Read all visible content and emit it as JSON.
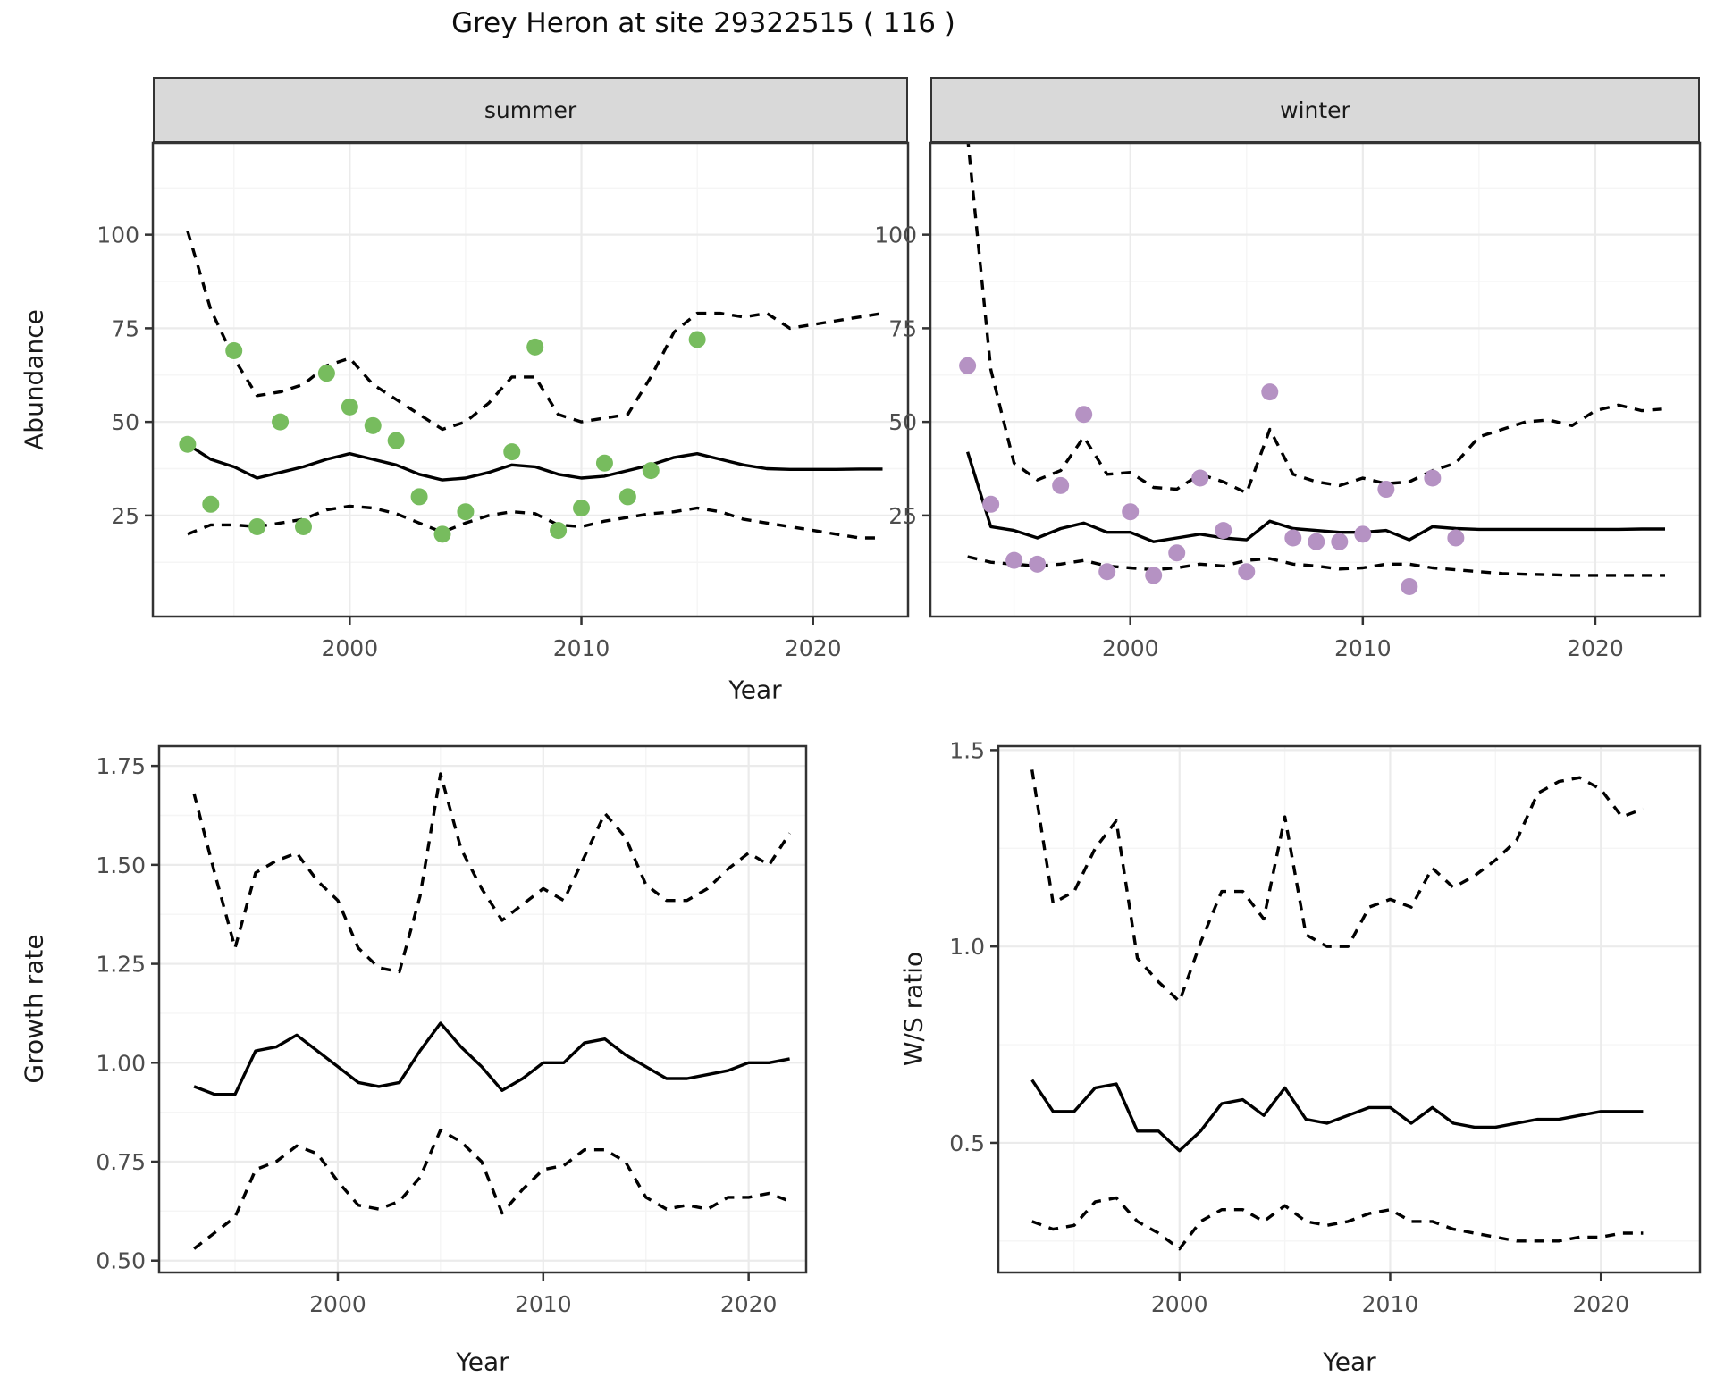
{
  "title": "Grey Heron at site 29322515 ( 116 )",
  "colors": {
    "summer_points": "#77bc5e",
    "winter_points": "#b592c3",
    "line": "#000000",
    "strip_bg": "#d9d9d9",
    "panel_border": "#333333",
    "grid_major": "#ebebeb",
    "grid_minor": "#f5f5f5",
    "axis_text": "#4d4d4d",
    "title_text": "#0d0d0d"
  },
  "chart_data": [
    {
      "id": "abundance-summer",
      "type": "line",
      "facet_label": "summer",
      "xlabel": "Year",
      "ylabel": "Abundance",
      "xlim": [
        1991.5,
        2024.1
      ],
      "ylim": [
        -2,
        124.5
      ],
      "xticks": [
        2000,
        2010,
        2020
      ],
      "xtick_labels": [
        "2000",
        "2010",
        "2020"
      ],
      "xticks_minor": [
        1995,
        2005,
        2015
      ],
      "yticks": [
        25,
        50,
        75,
        100
      ],
      "ytick_labels": [
        "25",
        "50",
        "75",
        "100"
      ],
      "yticks_minor": [
        12.5,
        37.5,
        62.5,
        87.5,
        112.5
      ],
      "grid": true,
      "legend": "none",
      "series": [
        {
          "name": "fitted-trend",
          "style": "solid",
          "x_start": 1993,
          "values": [
            44,
            40,
            38,
            35,
            36.5,
            38,
            40,
            41.5,
            40,
            38.5,
            36,
            34.5,
            35,
            36.5,
            38.5,
            38,
            36,
            35,
            35.5,
            37,
            38.5,
            40.5,
            41.5,
            40,
            38.5,
            37.5,
            37.3,
            37.3,
            37.3,
            37.4,
            37.4
          ]
        },
        {
          "name": "upper-ci",
          "style": "dashed",
          "x_start": 1993,
          "values": [
            101,
            80,
            67,
            57,
            58,
            60,
            65,
            67,
            60,
            56,
            52,
            48,
            50,
            55,
            62,
            62,
            52,
            50,
            51,
            52,
            62,
            74,
            79,
            79,
            78,
            79,
            75,
            76,
            77,
            78,
            79
          ]
        },
        {
          "name": "lower-ci",
          "style": "dashed",
          "x_start": 1993,
          "values": [
            20,
            22.5,
            22.5,
            22,
            23,
            24,
            26.5,
            27.5,
            27,
            25.5,
            23,
            20.5,
            23,
            25,
            26,
            25.5,
            22.5,
            22,
            23.5,
            24.5,
            25.5,
            26,
            27,
            26,
            24,
            23,
            22,
            21,
            20,
            19,
            19
          ]
        }
      ],
      "points": {
        "name": "observed-counts-summer",
        "color": "#77bc5e",
        "x": [
          1993,
          1994,
          1995,
          1996,
          1997,
          1998,
          1999,
          2000,
          2001,
          2002,
          2003,
          2004,
          2005,
          2007,
          2008,
          2009,
          2010,
          2011,
          2012,
          2013,
          2015
        ],
        "y": [
          44,
          28,
          69,
          22,
          50,
          22,
          63,
          54,
          49,
          45,
          30,
          20,
          26,
          42,
          70,
          21,
          27,
          39,
          30,
          37,
          72
        ]
      }
    },
    {
      "id": "abundance-winter",
      "type": "line",
      "facet_label": "winter",
      "xlabel": "Year",
      "ylabel": "Abundance",
      "xlim": [
        1991.4,
        2024.5
      ],
      "ylim": [
        -2,
        124.5
      ],
      "xticks": [
        2000,
        2010,
        2020
      ],
      "xtick_labels": [
        "2000",
        "2010",
        "2020"
      ],
      "xticks_minor": [
        1995,
        2005,
        2015
      ],
      "yticks": [
        25,
        50,
        75,
        100
      ],
      "ytick_labels": [
        "25",
        "50",
        "75",
        "100"
      ],
      "yticks_minor": [
        12.5,
        37.5,
        62.5,
        87.5,
        112.5
      ],
      "grid": true,
      "legend": "none",
      "series": [
        {
          "name": "fitted-trend",
          "style": "solid",
          "x_start": 1993,
          "values": [
            42,
            22,
            21,
            19,
            21.5,
            23,
            20.5,
            20.5,
            18,
            19,
            20,
            19,
            18.5,
            23.5,
            21.5,
            21,
            20.5,
            20.5,
            21,
            18.5,
            22,
            21.5,
            21.3,
            21.3,
            21.3,
            21.3,
            21.3,
            21.3,
            21.3,
            21.4,
            21.4
          ]
        },
        {
          "name": "upper-ci",
          "style": "dashed",
          "x_start": 1993,
          "values": [
            126,
            64,
            39,
            34.5,
            37,
            46,
            36,
            36.5,
            32.5,
            32,
            36,
            34,
            31,
            48,
            36,
            34,
            33,
            35,
            33.5,
            34,
            37,
            39,
            46,
            48,
            50,
            50.5,
            49,
            53,
            54.5,
            53,
            53.5
          ]
        },
        {
          "name": "lower-ci",
          "style": "dashed",
          "x_start": 1993,
          "values": [
            14,
            12.5,
            12,
            11.5,
            12,
            13,
            11.5,
            11,
            10.5,
            11,
            12,
            11.5,
            13,
            13.5,
            12,
            11.5,
            10.7,
            11,
            12,
            12,
            11,
            10.5,
            10,
            9.5,
            9.3,
            9.2,
            9,
            9,
            9,
            9,
            9
          ]
        }
      ],
      "points": {
        "name": "observed-counts-winter",
        "color": "#b592c3",
        "x": [
          1993,
          1994,
          1995,
          1996,
          1997,
          1998,
          1999,
          2000,
          2001,
          2002,
          2003,
          2004,
          2005,
          2006,
          2007,
          2008,
          2009,
          2010,
          2011,
          2012,
          2013,
          2014
        ],
        "y": [
          65,
          28,
          13,
          12,
          33,
          52,
          10,
          26,
          9,
          15,
          35,
          21,
          10,
          58,
          19,
          18,
          18,
          20,
          32,
          6,
          35,
          19
        ]
      }
    },
    {
      "id": "growth-rate",
      "type": "line",
      "facet_label": "",
      "xlabel": "Year",
      "ylabel": "Growth rate",
      "xlim": [
        1991.3,
        2022.8
      ],
      "ylim": [
        0.47,
        1.8
      ],
      "xticks": [
        2000,
        2010,
        2020
      ],
      "xtick_labels": [
        "2000",
        "2010",
        "2020"
      ],
      "xticks_minor": [
        1995,
        2005,
        2015
      ],
      "yticks": [
        0.5,
        0.75,
        1.0,
        1.25,
        1.5,
        1.75
      ],
      "ytick_labels": [
        "0.50",
        "0.75",
        "1.00",
        "1.25",
        "1.50",
        "1.75"
      ],
      "yticks_minor": [
        0.625,
        0.875,
        1.125,
        1.375,
        1.625
      ],
      "grid": true,
      "legend": "none",
      "series": [
        {
          "name": "fitted-trend",
          "style": "solid",
          "x_start": 1993,
          "values": [
            0.94,
            0.92,
            0.92,
            1.03,
            1.04,
            1.07,
            1.03,
            0.99,
            0.95,
            0.94,
            0.95,
            1.03,
            1.1,
            1.04,
            0.99,
            0.93,
            0.96,
            1.0,
            1.0,
            1.05,
            1.06,
            1.02,
            0.99,
            0.96,
            0.96,
            0.97,
            0.98,
            1.0,
            1.0,
            1.01
          ]
        },
        {
          "name": "upper-ci",
          "style": "dashed",
          "x_start": 1993,
          "values": [
            1.68,
            1.48,
            1.29,
            1.48,
            1.51,
            1.53,
            1.46,
            1.41,
            1.29,
            1.24,
            1.23,
            1.42,
            1.73,
            1.54,
            1.44,
            1.36,
            1.4,
            1.44,
            1.41,
            1.52,
            1.63,
            1.57,
            1.45,
            1.41,
            1.41,
            1.44,
            1.49,
            1.53,
            1.5,
            1.58
          ]
        },
        {
          "name": "lower-ci",
          "style": "dashed",
          "x_start": 1993,
          "values": [
            0.53,
            0.57,
            0.61,
            0.73,
            0.75,
            0.79,
            0.77,
            0.7,
            0.64,
            0.63,
            0.65,
            0.71,
            0.83,
            0.8,
            0.75,
            0.62,
            0.68,
            0.73,
            0.74,
            0.78,
            0.78,
            0.75,
            0.66,
            0.63,
            0.64,
            0.63,
            0.66,
            0.66,
            0.67,
            0.65
          ]
        }
      ]
    },
    {
      "id": "ws-ratio",
      "type": "line",
      "facet_label": "",
      "xlabel": "Year",
      "ylabel": "W/S ratio",
      "xlim": [
        1991.4,
        2024.7
      ],
      "ylim": [
        0.17,
        1.51
      ],
      "xticks": [
        2000,
        2010,
        2020
      ],
      "xtick_labels": [
        "2000",
        "2010",
        "2020"
      ],
      "xticks_minor": [
        1995,
        2005,
        2015
      ],
      "yticks": [
        0.5,
        1.0,
        1.5
      ],
      "ytick_labels": [
        "0.5",
        "1.0",
        "1.5"
      ],
      "yticks_minor": [
        0.25,
        0.75,
        1.25
      ],
      "grid": true,
      "legend": "none",
      "series": [
        {
          "name": "fitted-trend",
          "style": "solid",
          "x_start": 1993,
          "values": [
            0.66,
            0.58,
            0.58,
            0.64,
            0.65,
            0.53,
            0.53,
            0.48,
            0.53,
            0.6,
            0.61,
            0.57,
            0.64,
            0.56,
            0.55,
            0.57,
            0.59,
            0.59,
            0.55,
            0.59,
            0.55,
            0.54,
            0.54,
            0.55,
            0.56,
            0.56,
            0.57,
            0.58,
            0.58,
            0.58
          ]
        },
        {
          "name": "upper-ci",
          "style": "dashed",
          "x_start": 1993,
          "values": [
            1.45,
            1.11,
            1.14,
            1.25,
            1.32,
            0.97,
            0.91,
            0.86,
            1.01,
            1.14,
            1.14,
            1.07,
            1.33,
            1.03,
            1.0,
            1.0,
            1.1,
            1.12,
            1.1,
            1.2,
            1.15,
            1.18,
            1.22,
            1.27,
            1.39,
            1.42,
            1.43,
            1.4,
            1.33,
            1.35
          ]
        },
        {
          "name": "lower-ci",
          "style": "dashed",
          "x_start": 1993,
          "values": [
            0.3,
            0.28,
            0.29,
            0.35,
            0.36,
            0.3,
            0.27,
            0.23,
            0.3,
            0.33,
            0.33,
            0.3,
            0.34,
            0.3,
            0.29,
            0.3,
            0.32,
            0.33,
            0.3,
            0.3,
            0.28,
            0.27,
            0.26,
            0.25,
            0.25,
            0.25,
            0.26,
            0.26,
            0.27,
            0.27
          ]
        }
      ]
    }
  ]
}
